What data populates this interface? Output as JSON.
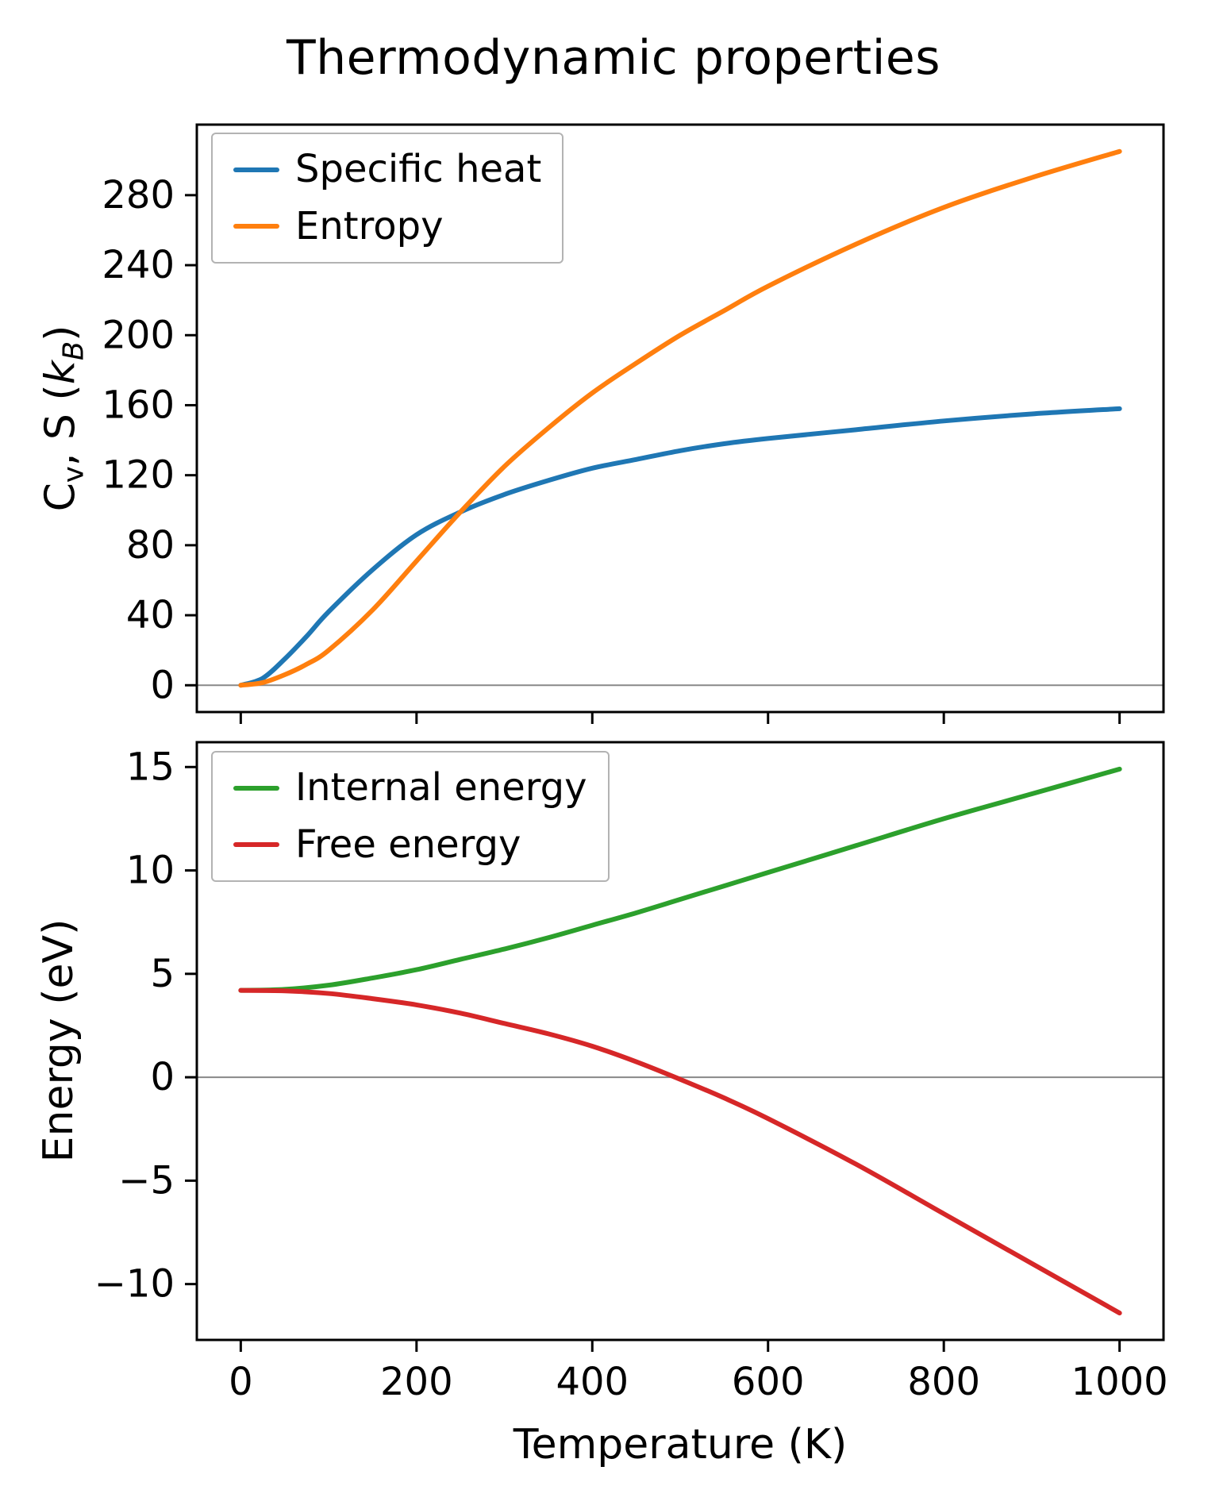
{
  "figure": {
    "title": "Thermodynamic properties"
  },
  "labels": {
    "y_axis_top": {
      "p0": "C",
      "p1": "v",
      "p2": ", S (",
      "p3": "k",
      "p4": "B",
      "p5": ")"
    },
    "y_axis_bottom": "Energy (eV)",
    "x_axis": "Temperature (K)"
  },
  "colors": {
    "spine": "#000000",
    "tick": "#000000",
    "zero_line": "#888888",
    "legend_border": "#b3b3b3"
  },
  "chart_data": [
    {
      "type": "line",
      "title": "Thermodynamic properties",
      "ylabel": "C_v, S (k_B)",
      "xlabel": "",
      "xlim": [
        -50,
        1050
      ],
      "ylim": [
        -15.3,
        320.3
      ],
      "xticks": [
        0,
        200,
        400,
        600,
        800,
        1000
      ],
      "yticks": [
        0,
        40,
        80,
        120,
        160,
        200,
        240,
        280
      ],
      "x_tick_labels_visible": false,
      "grid": false,
      "zero_line": true,
      "legend_position": "upper left",
      "x": [
        0,
        25,
        50,
        75,
        100,
        150,
        200,
        250,
        300,
        350,
        400,
        450,
        500,
        550,
        600,
        700,
        800,
        900,
        1000
      ],
      "series": [
        {
          "name": "Specific heat",
          "color": "#1f77b4",
          "values": [
            0,
            4,
            15,
            28,
            42,
            66,
            86,
            99,
            109,
            117,
            124,
            129,
            134,
            138,
            141,
            146,
            151,
            155,
            158
          ]
        },
        {
          "name": "Entropy",
          "color": "#ff7f0e",
          "values": [
            0,
            1.5,
            6,
            12,
            20,
            43,
            71,
            99,
            125,
            147,
            167,
            184,
            200,
            214,
            228,
            252,
            273,
            290,
            305
          ]
        }
      ]
    },
    {
      "type": "line",
      "title": "",
      "ylabel": "Energy (eV)",
      "xlabel": "Temperature (K)",
      "xlim": [
        -50,
        1050
      ],
      "ylim": [
        -12.7,
        16.2
      ],
      "xticks": [
        0,
        200,
        400,
        600,
        800,
        1000
      ],
      "yticks": [
        -10,
        -5,
        0,
        5,
        10,
        15
      ],
      "x_tick_labels_visible": true,
      "grid": false,
      "zero_line": true,
      "legend_position": "upper left",
      "x": [
        0,
        50,
        100,
        150,
        200,
        250,
        300,
        350,
        400,
        450,
        500,
        550,
        600,
        700,
        800,
        900,
        1000
      ],
      "series": [
        {
          "name": "Internal energy",
          "color": "#2ca02c",
          "values": [
            4.2,
            4.25,
            4.45,
            4.8,
            5.2,
            5.7,
            6.2,
            6.75,
            7.35,
            7.95,
            8.6,
            9.25,
            9.9,
            11.2,
            12.5,
            13.7,
            14.9
          ]
        },
        {
          "name": "Free energy",
          "color": "#d62728",
          "values": [
            4.2,
            4.18,
            4.05,
            3.8,
            3.5,
            3.1,
            2.6,
            2.1,
            1.5,
            0.75,
            -0.1,
            -1.0,
            -2.0,
            -4.2,
            -6.6,
            -9.0,
            -11.4
          ]
        }
      ]
    }
  ]
}
